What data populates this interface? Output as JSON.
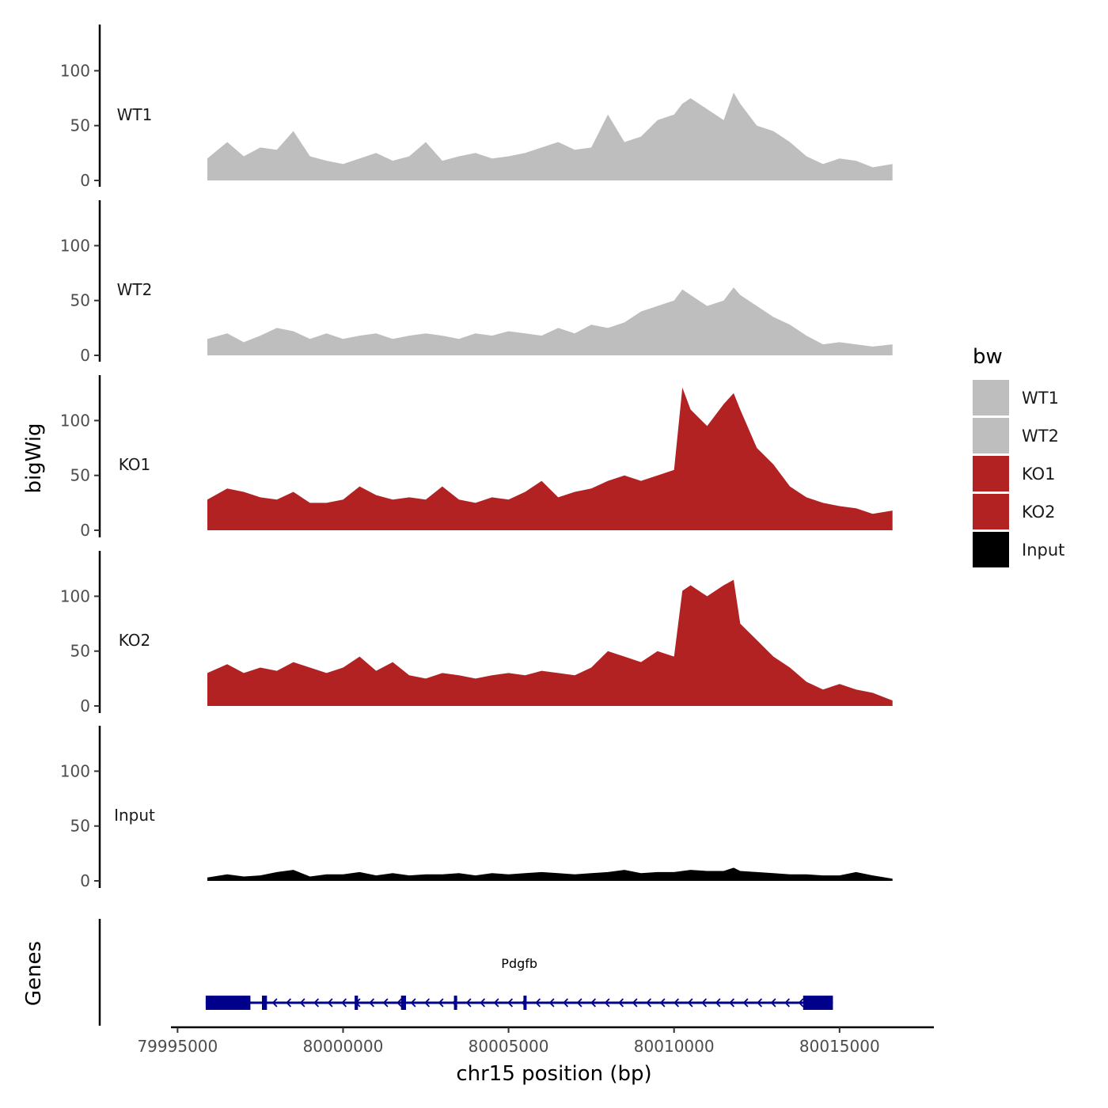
{
  "chart_data": {
    "type": "area",
    "chromosome": "chr15",
    "xlabel": "chr15 position (bp)",
    "ylabel": "bigWig",
    "gene_panel_label": "Genes",
    "xlim": [
      79994800,
      80017850
    ],
    "x_ticks": [
      79995000,
      80000000,
      80005000,
      80010000,
      80015000
    ],
    "x_tick_labels": [
      "79995000",
      "80000000",
      "80005000",
      "80010000",
      "80015000"
    ],
    "ylim": [
      0,
      140
    ],
    "y_ticks": [
      0,
      50,
      100
    ],
    "y_tick_labels": [
      "0",
      "50",
      "100"
    ],
    "legend": {
      "title": "bw",
      "entries": [
        {
          "label": "WT1",
          "color": "#bebebe"
        },
        {
          "label": "WT2",
          "color": "#bebebe"
        },
        {
          "label": "KO1",
          "color": "#b22222"
        },
        {
          "label": "KO2",
          "color": "#b22222"
        },
        {
          "label": "Input",
          "color": "#000000"
        }
      ]
    },
    "x_positions": [
      79995900,
      79996500,
      79997000,
      79997500,
      79998000,
      79998500,
      79999000,
      79999500,
      80000000,
      80000500,
      80001000,
      80001500,
      80002000,
      80002500,
      80003000,
      80003500,
      80004000,
      80004500,
      80005000,
      80005500,
      80006000,
      80006500,
      80007000,
      80007500,
      80008000,
      80008500,
      80009000,
      80009500,
      80010000,
      80010250,
      80010500,
      80011000,
      80011500,
      80011800,
      80012000,
      80012500,
      80013000,
      80013500,
      80014000,
      80014500,
      80015000,
      80015500,
      80016000,
      80016600
    ],
    "series": [
      {
        "name": "WT1",
        "color": "#bebebe",
        "values": [
          20,
          35,
          22,
          30,
          28,
          45,
          22,
          18,
          15,
          20,
          25,
          18,
          22,
          35,
          18,
          22,
          25,
          20,
          22,
          25,
          30,
          35,
          28,
          30,
          60,
          35,
          40,
          55,
          60,
          70,
          75,
          65,
          55,
          80,
          70,
          50,
          45,
          35,
          22,
          15,
          20,
          18,
          12,
          15
        ]
      },
      {
        "name": "WT2",
        "color": "#bebebe",
        "values": [
          15,
          20,
          12,
          18,
          25,
          22,
          15,
          20,
          15,
          18,
          20,
          15,
          18,
          20,
          18,
          15,
          20,
          18,
          22,
          20,
          18,
          25,
          20,
          28,
          25,
          30,
          40,
          45,
          50,
          60,
          55,
          45,
          50,
          62,
          55,
          45,
          35,
          28,
          18,
          10,
          12,
          10,
          8,
          10
        ]
      },
      {
        "name": "KO1",
        "color": "#b22222",
        "values": [
          28,
          38,
          35,
          30,
          28,
          35,
          25,
          25,
          28,
          40,
          32,
          28,
          30,
          28,
          40,
          28,
          25,
          30,
          28,
          35,
          45,
          30,
          35,
          38,
          45,
          50,
          45,
          50,
          55,
          130,
          110,
          95,
          115,
          125,
          110,
          75,
          60,
          40,
          30,
          25,
          22,
          20,
          15,
          18
        ]
      },
      {
        "name": "KO2",
        "color": "#b22222",
        "values": [
          30,
          38,
          30,
          35,
          32,
          40,
          35,
          30,
          35,
          45,
          32,
          40,
          28,
          25,
          30,
          28,
          25,
          28,
          30,
          28,
          32,
          30,
          28,
          35,
          50,
          45,
          40,
          50,
          45,
          105,
          110,
          100,
          110,
          115,
          75,
          60,
          45,
          35,
          22,
          15,
          20,
          15,
          12,
          5
        ]
      },
      {
        "name": "Input",
        "color": "#000000",
        "values": [
          3,
          6,
          4,
          5,
          8,
          10,
          4,
          6,
          6,
          8,
          5,
          7,
          5,
          6,
          6,
          7,
          5,
          7,
          6,
          7,
          8,
          7,
          6,
          7,
          8,
          10,
          7,
          8,
          8,
          9,
          10,
          9,
          9,
          12,
          9,
          8,
          7,
          6,
          6,
          5,
          5,
          8,
          5,
          2
        ]
      }
    ],
    "gene": {
      "name": "Pdgfb",
      "strand": "-",
      "start": 79995850,
      "end": 80014800,
      "color": "#00008b",
      "exons": [
        {
          "start": 79995850,
          "end": 79997200,
          "kind": "utr"
        },
        {
          "start": 79997550,
          "end": 79997700,
          "kind": "coding"
        },
        {
          "start": 80000350,
          "end": 80000450,
          "kind": "coding"
        },
        {
          "start": 80001750,
          "end": 80001900,
          "kind": "coding"
        },
        {
          "start": 80003350,
          "end": 80003420,
          "kind": "coding"
        },
        {
          "start": 80005450,
          "end": 80005520,
          "kind": "coding"
        },
        {
          "start": 80013900,
          "end": 80014800,
          "kind": "utr"
        }
      ]
    }
  }
}
